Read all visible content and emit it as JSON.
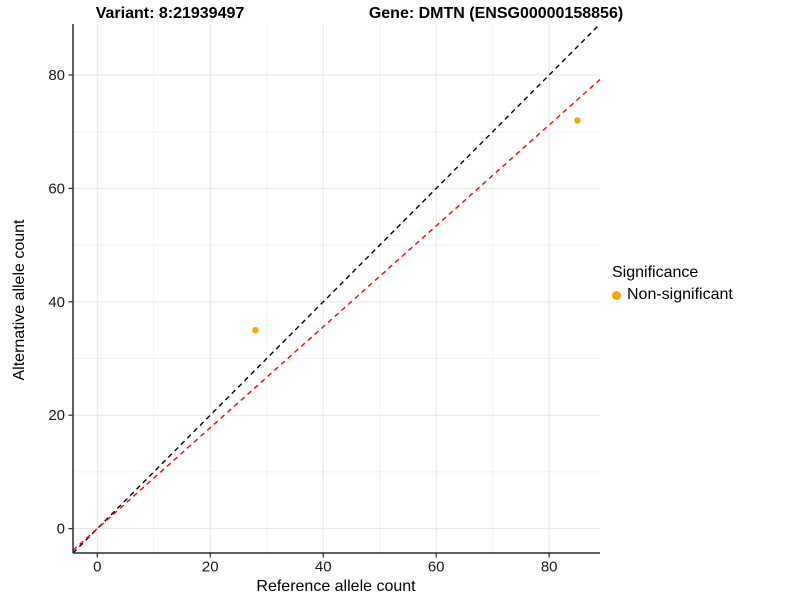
{
  "chart_data": {
    "type": "scatter",
    "title_left": "Variant: 8:21939497",
    "title_right": "Gene: DMTN (ENSG00000158856)",
    "xlabel": "Reference allele count",
    "ylabel": "Alternative allele count",
    "xlim": [
      -4.3,
      89
    ],
    "ylim": [
      -4.3,
      89
    ],
    "x_ticks": [
      0,
      20,
      40,
      60,
      80
    ],
    "y_ticks": [
      0,
      20,
      40,
      60,
      80
    ],
    "x_minor_gridlines": [
      10,
      30,
      50,
      70
    ],
    "y_minor_gridlines": [
      10,
      30,
      50,
      70
    ],
    "grid": "on",
    "legend_position": "right",
    "legend_title": "Significance",
    "series": [
      {
        "name": "Non-significant",
        "color": "#FFA500",
        "marker": "circle",
        "points": [
          {
            "x": 28,
            "y": 35
          },
          {
            "x": 85,
            "y": 72
          }
        ]
      }
    ],
    "reference_lines": [
      {
        "name": "identity-line",
        "slope": 1,
        "intercept": 0,
        "color": "#000000",
        "style": "dashed"
      },
      {
        "name": "fitted-ratio-line",
        "slope": 0.89,
        "intercept": 0,
        "color": "#FF0000",
        "style": "dashed"
      }
    ],
    "colors": {
      "major_grid": "#E6E6E6",
      "minor_grid": "#F2F2F2",
      "axis_line": "#2B2B2B",
      "tick_label": "#1A1A1A"
    }
  }
}
